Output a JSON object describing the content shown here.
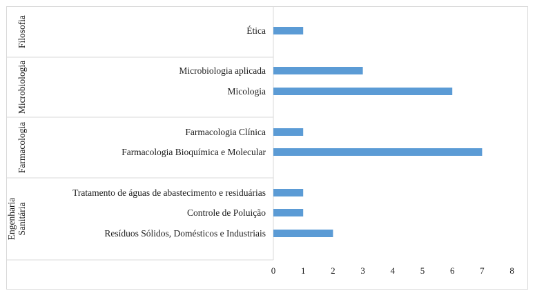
{
  "chart_data": {
    "type": "bar",
    "orientation": "horizontal",
    "groups": [
      {
        "name": "Filosofia",
        "categories": [
          {
            "label": "Ética",
            "value": 1
          }
        ]
      },
      {
        "name": "Microbiologia",
        "categories": [
          {
            "label": "Microbiologia aplicada",
            "value": 3
          },
          {
            "label": "Micologia",
            "value": 6
          }
        ]
      },
      {
        "name": "Farmacologia",
        "categories": [
          {
            "label": "Farmacologia Clínica",
            "value": 1
          },
          {
            "label": "Farmacologia Bioquímica e Molecular",
            "value": 7
          }
        ]
      },
      {
        "name": "Engenharia Sanitária",
        "categories": [
          {
            "label": "Tratamento de águas de abastecimento e residuárias",
            "value": 1
          },
          {
            "label": "Controle de Poluição",
            "value": 1
          },
          {
            "label": "Resíduos Sólidos, Domésticos e Industriais",
            "value": 2
          }
        ]
      }
    ],
    "xlim": [
      0,
      8
    ],
    "xticks": [
      "0",
      "1",
      "2",
      "3",
      "4",
      "5",
      "6",
      "7",
      "8"
    ],
    "bar_color": "#5b9bd5",
    "grid": false,
    "legend": "none"
  }
}
